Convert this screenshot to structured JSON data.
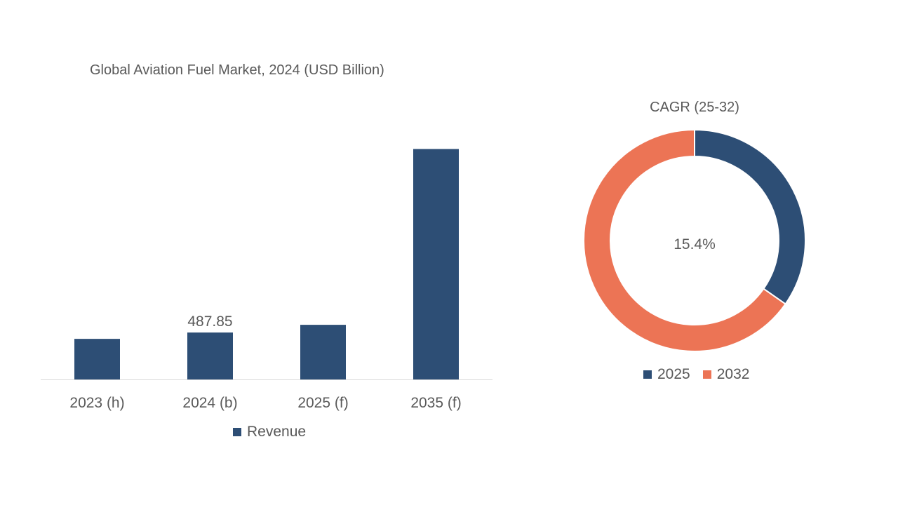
{
  "chart_data": [
    {
      "type": "bar",
      "title": "Global Aviation Fuel Market, 2024 (USD Billion)",
      "xlabel": "",
      "ylabel": "",
      "categories": [
        "2023 (h)",
        "2024 (b)",
        "2025 (f)",
        "2035 (f)"
      ],
      "series": [
        {
          "name": "Revenue",
          "values": [
            422,
            487.85,
            568,
            2396
          ],
          "color": "#2D4E75"
        }
      ],
      "data_labels": [
        null,
        "487.85",
        null,
        null
      ],
      "ylim": [
        0,
        2450
      ],
      "grid": false,
      "legend": "bottom-center"
    },
    {
      "type": "pie",
      "variant": "donut",
      "title": "CAGR (25-32)",
      "center_label": "15.4%",
      "categories": [
        "2025",
        "2032"
      ],
      "values": [
        34.7,
        65.3
      ],
      "colors": [
        "#2D4E75",
        "#EC7455"
      ],
      "legend": "bottom-center"
    }
  ]
}
